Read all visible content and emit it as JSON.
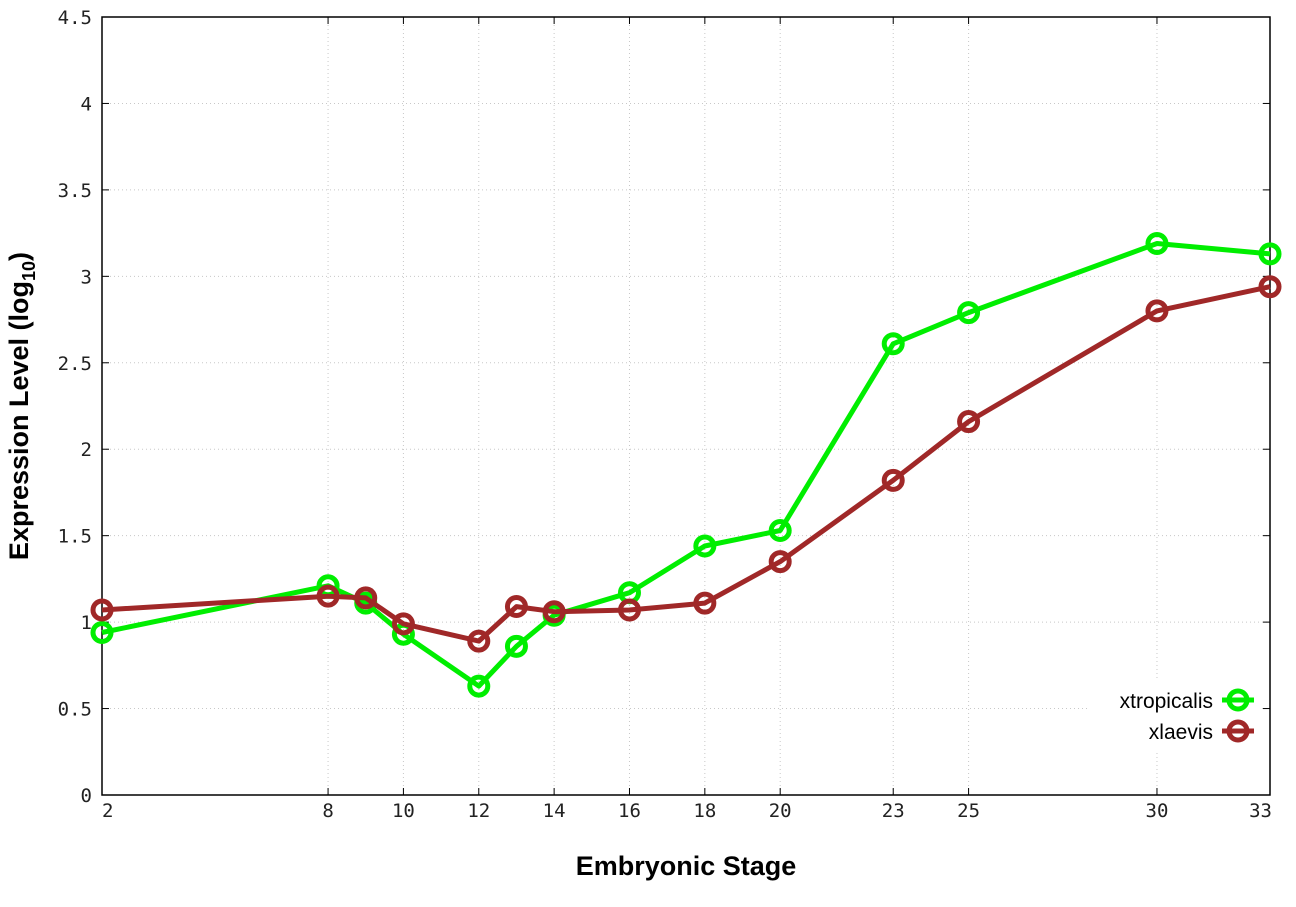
{
  "chart_data": {
    "type": "line",
    "xlabel": "Embryonic Stage",
    "ylabel_main": "Expression Level (log",
    "ylabel_sub": "10",
    "ylabel_close": ")",
    "x_ticks": [
      2,
      8,
      10,
      12,
      14,
      16,
      18,
      20,
      23,
      25,
      30,
      33
    ],
    "y_ticks": [
      {
        "value": 0,
        "label": "0"
      },
      {
        "value": 0.5,
        "label": "0.5"
      },
      {
        "value": 1,
        "label": "1"
      },
      {
        "value": 1.5,
        "label": "1.5"
      },
      {
        "value": 2,
        "label": "2"
      },
      {
        "value": 2.5,
        "label": "2.5"
      },
      {
        "value": 3,
        "label": "3"
      },
      {
        "value": 3.5,
        "label": "3.5"
      },
      {
        "value": 4,
        "label": "4"
      },
      {
        "value": 4.5,
        "label": "4.5"
      }
    ],
    "ylim": [
      0,
      4.5
    ],
    "grid": true,
    "legend_position": "bottom-right",
    "series": [
      {
        "name": "xtropicalis",
        "color": "#00ee00",
        "x": [
          2,
          8,
          9,
          10,
          12,
          13,
          14,
          16,
          18,
          20,
          23,
          25,
          30,
          33
        ],
        "y": [
          0.94,
          1.21,
          1.11,
          0.93,
          0.63,
          0.86,
          1.04,
          1.17,
          1.44,
          1.53,
          2.61,
          2.79,
          3.19,
          3.13
        ]
      },
      {
        "name": "xlaevis",
        "color": "#a02828",
        "x": [
          2,
          8,
          9,
          10,
          12,
          13,
          14,
          16,
          18,
          20,
          23,
          25,
          30,
          33
        ],
        "y": [
          1.07,
          1.15,
          1.14,
          0.99,
          0.89,
          1.09,
          1.06,
          1.07,
          1.11,
          1.35,
          1.82,
          2.16,
          2.8,
          2.94
        ]
      }
    ]
  }
}
